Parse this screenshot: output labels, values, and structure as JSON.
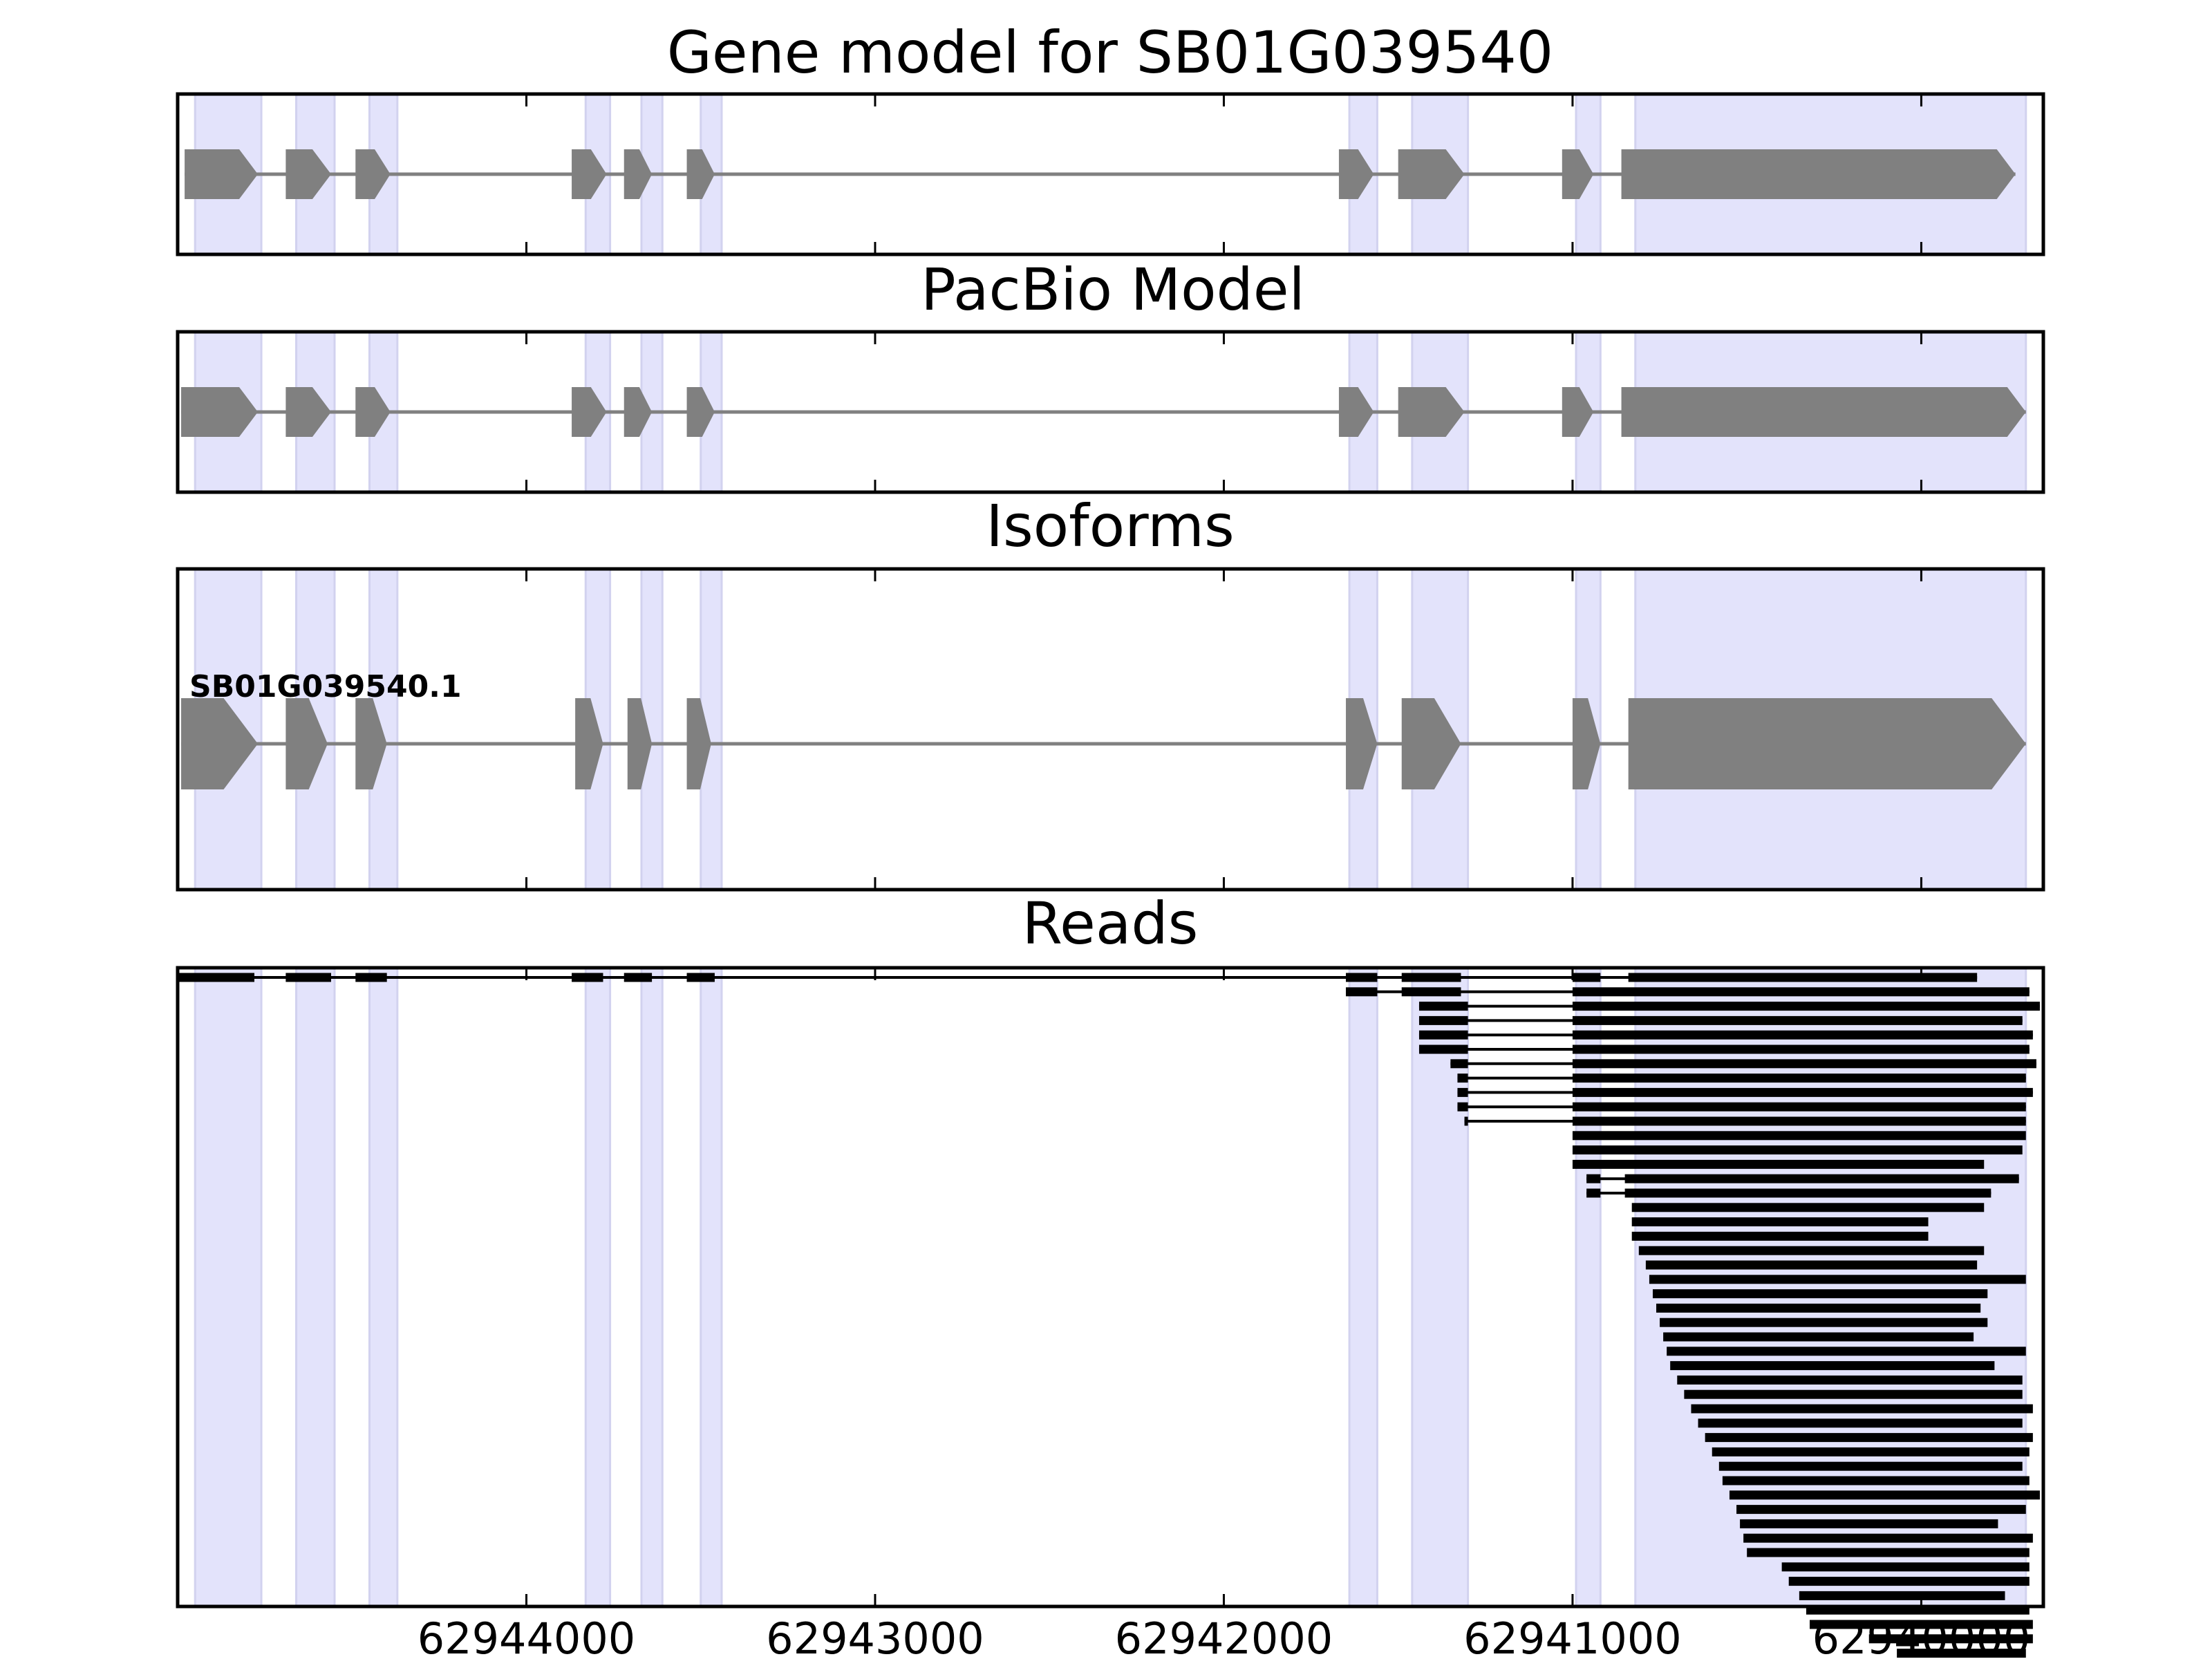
{
  "chart_data": {
    "type": "gene-structure",
    "x_reversed": true,
    "xlim": [
      62945000,
      62939650
    ],
    "xticks": [
      62944000,
      62943000,
      62942000,
      62941000,
      62940000
    ],
    "xtick_labels": [
      "62944000",
      "62943000",
      "62942000",
      "62941000",
      "62940000"
    ],
    "exon_regions": [
      [
        62944950,
        62944760
      ],
      [
        62944660,
        62944550
      ],
      [
        62944450,
        62944370
      ],
      [
        62943830,
        62943760
      ],
      [
        62943670,
        62943610
      ],
      [
        62943500,
        62943440
      ],
      [
        62941640,
        62941560
      ],
      [
        62941460,
        62941300
      ],
      [
        62940990,
        62940920
      ],
      [
        62940820,
        62939700
      ]
    ],
    "panels": [
      {
        "key": "gene_model",
        "title": "Gene model for SB01G039540",
        "track_start": 62944980,
        "track_end": 62939730,
        "exons": [
          [
            62944980,
            62944770
          ],
          [
            62944690,
            62944560
          ],
          [
            62944490,
            62944390
          ],
          [
            62943870,
            62943770
          ],
          [
            62943720,
            62943640
          ],
          [
            62943540,
            62943460
          ],
          [
            62941670,
            62941570
          ],
          [
            62941500,
            62941310
          ],
          [
            62941030,
            62940940
          ],
          [
            62940860,
            62939730
          ]
        ]
      },
      {
        "key": "pacbio_model",
        "title": "PacBio Model",
        "track_start": 62944990,
        "track_end": 62939700,
        "exons": [
          [
            62944990,
            62944770
          ],
          [
            62944690,
            62944560
          ],
          [
            62944490,
            62944390
          ],
          [
            62943870,
            62943770
          ],
          [
            62943720,
            62943640
          ],
          [
            62943540,
            62943460
          ],
          [
            62941670,
            62941570
          ],
          [
            62941500,
            62941310
          ],
          [
            62941030,
            62940940
          ],
          [
            62940860,
            62939700
          ]
        ]
      },
      {
        "key": "isoforms",
        "title": "Isoforms",
        "isoform_label": "SB01G039540.1",
        "track_start": 62944990,
        "track_end": 62939700,
        "exons": [
          [
            62944990,
            62944770
          ],
          [
            62944690,
            62944570
          ],
          [
            62944490,
            62944400
          ],
          [
            62943860,
            62943780
          ],
          [
            62943710,
            62943640
          ],
          [
            62943540,
            62943470
          ],
          [
            62941650,
            62941560
          ],
          [
            62941490,
            62941320
          ],
          [
            62941000,
            62940920
          ],
          [
            62940840,
            62939700
          ]
        ]
      },
      {
        "key": "reads",
        "title": "Reads",
        "reads": [
          [
            [
              62945000,
              62944780
            ],
            [
              62944690,
              62944560
            ],
            [
              62944490,
              62944400
            ],
            [
              62943870,
              62943780
            ],
            [
              62943720,
              62943640
            ],
            [
              62943540,
              62943460
            ],
            [
              62941650,
              62941560
            ],
            [
              62941490,
              62941320
            ],
            [
              62941000,
              62940920
            ],
            [
              62940840,
              62939840
            ]
          ],
          [
            [
              62941650,
              62941560
            ],
            [
              62941490,
              62941320
            ],
            [
              62941000,
              62939690
            ]
          ],
          [
            [
              62941440,
              62941300
            ],
            [
              62941000,
              62939660
            ]
          ],
          [
            [
              62941440,
              62941300
            ],
            [
              62941000,
              62939710
            ]
          ],
          [
            [
              62941440,
              62941300
            ],
            [
              62941000,
              62939680
            ]
          ],
          [
            [
              62941440,
              62941300
            ],
            [
              62941000,
              62939690
            ]
          ],
          [
            [
              62941350,
              62941300
            ],
            [
              62941000,
              62939670
            ]
          ],
          [
            [
              62941330,
              62941300
            ],
            [
              62941000,
              62939700
            ]
          ],
          [
            [
              62941330,
              62941300
            ],
            [
              62941000,
              62939680
            ]
          ],
          [
            [
              62941330,
              62941300
            ],
            [
              62941000,
              62939700
            ]
          ],
          [
            [
              62941310,
              62941300
            ],
            [
              62941000,
              62939700
            ]
          ],
          [
            [
              62941000,
              62939700
            ]
          ],
          [
            [
              62941000,
              62939710
            ]
          ],
          [
            [
              62941000,
              62939820
            ]
          ],
          [
            [
              62940960,
              62940920
            ],
            [
              62940850,
              62939720
            ]
          ],
          [
            [
              62940960,
              62940920
            ],
            [
              62940850,
              62939800
            ]
          ],
          [
            [
              62940830,
              62939820
            ]
          ],
          [
            [
              62940830,
              62939980
            ]
          ],
          [
            [
              62940830,
              62939980
            ]
          ],
          [
            [
              62940810,
              62939820
            ]
          ],
          [
            [
              62940790,
              62939840
            ]
          ],
          [
            [
              62940780,
              62939700
            ]
          ],
          [
            [
              62940770,
              62939810
            ]
          ],
          [
            [
              62940760,
              62939830
            ]
          ],
          [
            [
              62940750,
              62939810
            ]
          ],
          [
            [
              62940740,
              62939850
            ]
          ],
          [
            [
              62940730,
              62939700
            ]
          ],
          [
            [
              62940720,
              62939790
            ]
          ],
          [
            [
              62940700,
              62939710
            ]
          ],
          [
            [
              62940680,
              62939710
            ]
          ],
          [
            [
              62940660,
              62939680
            ]
          ],
          [
            [
              62940640,
              62939710
            ]
          ],
          [
            [
              62940620,
              62939680
            ]
          ],
          [
            [
              62940600,
              62939690
            ]
          ],
          [
            [
              62940580,
              62939710
            ]
          ],
          [
            [
              62940570,
              62939690
            ]
          ],
          [
            [
              62940550,
              62939660
            ]
          ],
          [
            [
              62940530,
              62939700
            ]
          ],
          [
            [
              62940520,
              62939780
            ]
          ],
          [
            [
              62940510,
              62939680
            ]
          ],
          [
            [
              62940500,
              62939690
            ]
          ],
          [
            [
              62940400,
              62939690
            ]
          ],
          [
            [
              62940380,
              62939690
            ]
          ],
          [
            [
              62940350,
              62939760
            ]
          ],
          [
            [
              62940330,
              62939690
            ]
          ],
          [
            [
              62940320,
              62939680
            ]
          ],
          [
            [
              62940150,
              62939680
            ]
          ],
          [
            [
              62940070,
              62939700
            ]
          ],
          [
            [
              62940000,
              62939700
            ]
          ]
        ]
      }
    ]
  }
}
